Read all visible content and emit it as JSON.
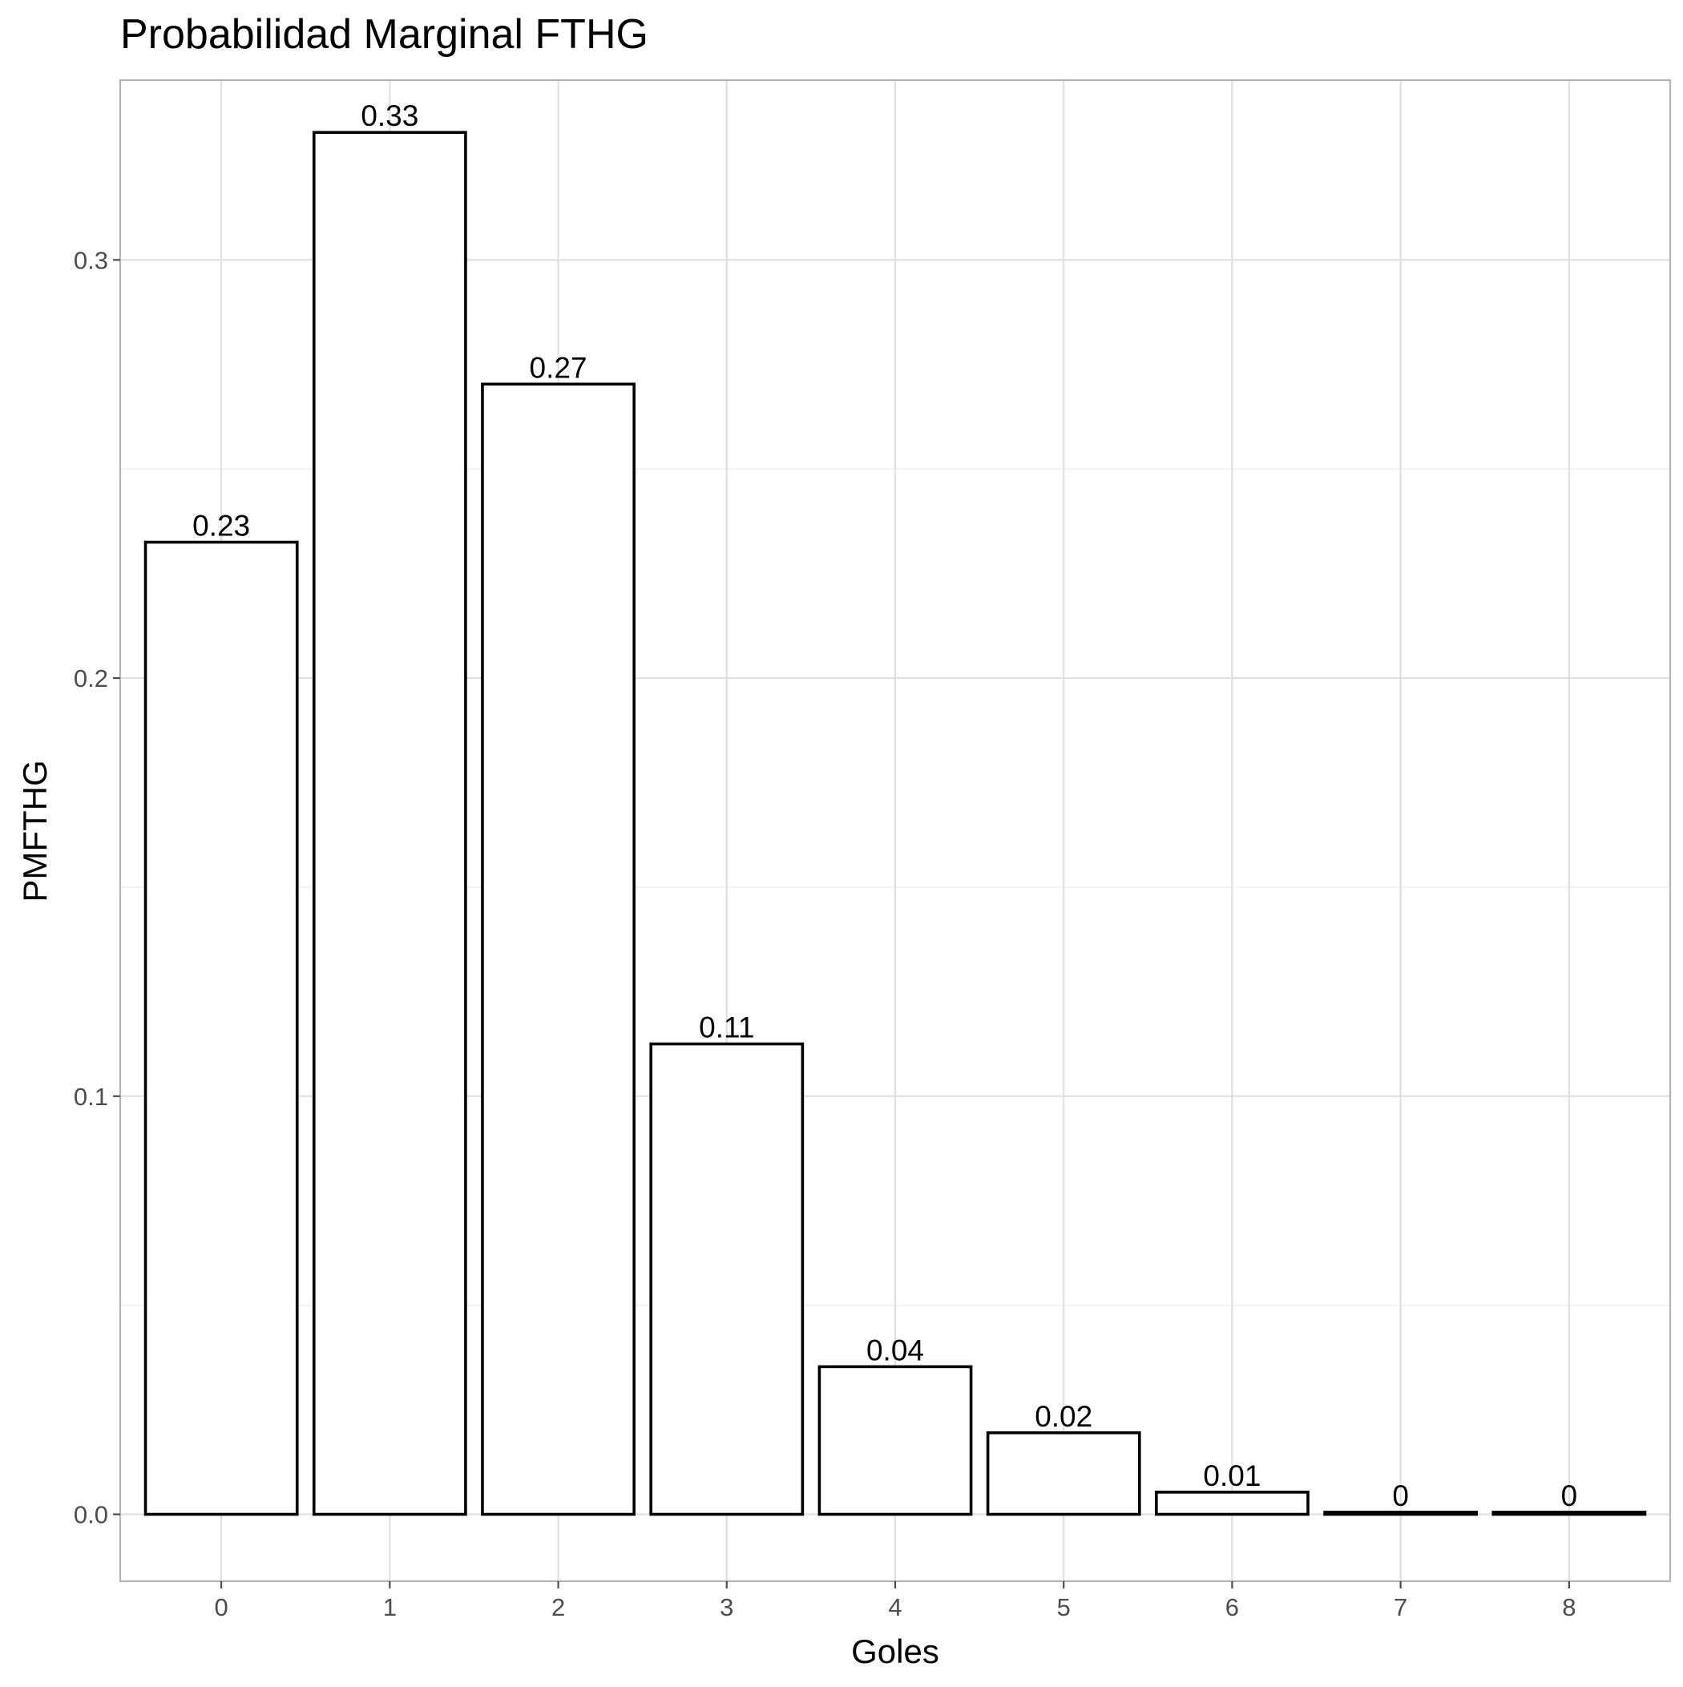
{
  "chart_data": {
    "type": "bar",
    "title": "Probabilidad Marginal FTHG",
    "xlabel": "Goles",
    "ylabel": "PMFTHG",
    "categories": [
      "0",
      "1",
      "2",
      "3",
      "4",
      "5",
      "6",
      "7",
      "8"
    ],
    "values": [
      0.2325,
      0.3305,
      0.2703,
      0.1125,
      0.0353,
      0.0195,
      0.0053,
      0.0005,
      0.0005
    ],
    "value_labels": [
      "0.23",
      "0.33",
      "0.27",
      "0.11",
      "0.04",
      "0.02",
      "0.01",
      "0",
      "0"
    ],
    "ylim": [
      -0.016,
      0.343
    ],
    "y_ticks": [
      0.0,
      0.1,
      0.2,
      0.3
    ],
    "y_tick_labels": [
      "0.0",
      "0.1",
      "0.2",
      "0.3"
    ],
    "y_minor_ticks": [
      0.05,
      0.15,
      0.25
    ],
    "grid": true,
    "bar_fill": "#ffffff",
    "bar_outline": "#000000",
    "grid_color": "#e0e0e0",
    "panel_border_color": "#b3b3b3",
    "tick_label_color": "#4d4d4d"
  }
}
